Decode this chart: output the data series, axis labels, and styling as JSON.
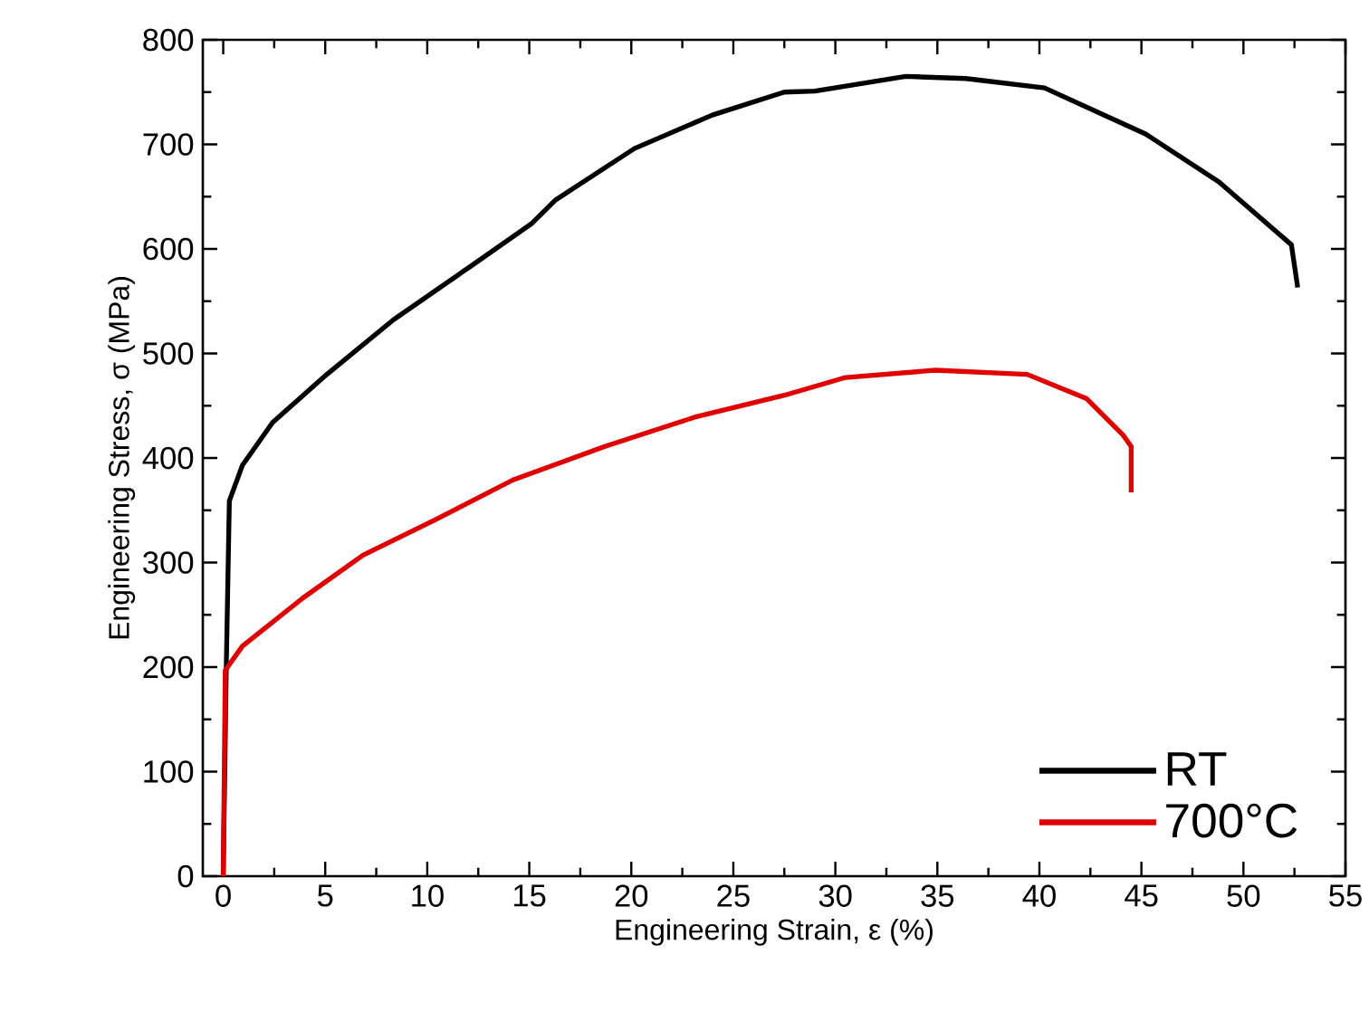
{
  "chart_data": {
    "type": "line",
    "xlabel": "Engineering Strain, ε (%)",
    "ylabel": "Engineering Stress, σ (MPa)",
    "xlim": [
      -1,
      55
    ],
    "ylim": [
      0,
      800
    ],
    "xticks": [
      0,
      5,
      10,
      15,
      20,
      25,
      30,
      35,
      40,
      45,
      50,
      55
    ],
    "yticks": [
      0,
      100,
      200,
      300,
      400,
      500,
      600,
      700,
      800
    ],
    "legend": "bottom right",
    "grid": false,
    "marker": "none",
    "line_style": "solid",
    "series": [
      {
        "name": "RT",
        "color": "#000000",
        "x": [
          0,
          0.15,
          0.3,
          0.94,
          2.42,
          5.08,
          8.33,
          12.17,
          15.1,
          16.3,
          20.15,
          23.97,
          27.5,
          29.0,
          33.45,
          36.4,
          40.25,
          45.2,
          48.8,
          52.35,
          52.66
        ],
        "values": [
          0,
          200,
          359,
          393,
          434,
          480,
          532,
          584,
          624,
          647,
          696,
          728,
          750,
          751,
          765,
          763,
          754,
          710,
          664,
          604,
          563
        ]
      },
      {
        "name": "700°C",
        "color": "#e00000",
        "x": [
          0,
          0.1,
          0.94,
          3.9,
          6.85,
          10.4,
          14.2,
          18.7,
          23.1,
          27.5,
          30.5,
          34.9,
          39.4,
          42.3,
          44.1,
          44.5,
          44.5
        ],
        "values": [
          0,
          197,
          220,
          266,
          307,
          341,
          379,
          411,
          439,
          460,
          477,
          484,
          480,
          457,
          422,
          411,
          367
        ]
      }
    ]
  }
}
